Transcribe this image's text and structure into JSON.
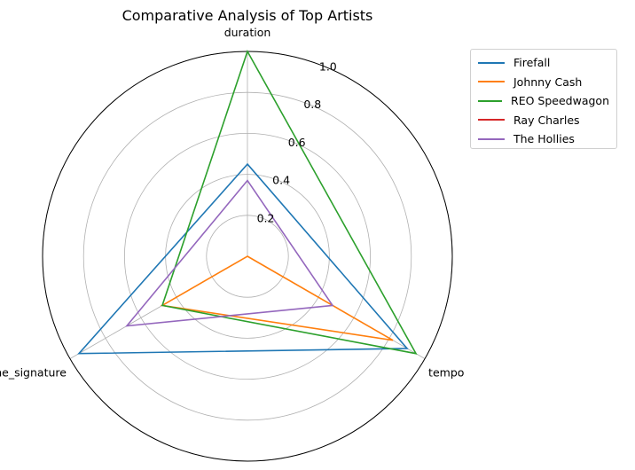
{
  "chart_data": {
    "type": "radar",
    "title": "Comparative Analysis of Top Artists",
    "axes": [
      "duration",
      "tempo",
      "time_signature"
    ],
    "rlim": [
      0,
      1.0
    ],
    "rticks": [
      0.2,
      0.4,
      0.6,
      0.8,
      1.0
    ],
    "rtick_labels": [
      "0.2",
      "0.4",
      "0.6",
      "0.8",
      "1.0"
    ],
    "grid": true,
    "legend_position": "outside top-right",
    "series": [
      {
        "name": "Firefall",
        "color": "#1f77b4",
        "values": [
          0.45,
          0.9,
          0.95
        ]
      },
      {
        "name": "Johnny Cash",
        "color": "#ff7f0e",
        "values": [
          0.0,
          0.82,
          0.48
        ]
      },
      {
        "name": "REO Speedwagon",
        "color": "#2ca02c",
        "values": [
          1.0,
          0.95,
          0.48
        ]
      },
      {
        "name": "Ray Charles",
        "color": "#d62728",
        "values": [
          0.0,
          0.0,
          0.0
        ]
      },
      {
        "name": "The Hollies",
        "color": "#9467bd",
        "values": [
          0.37,
          0.48,
          0.68
        ]
      }
    ]
  }
}
